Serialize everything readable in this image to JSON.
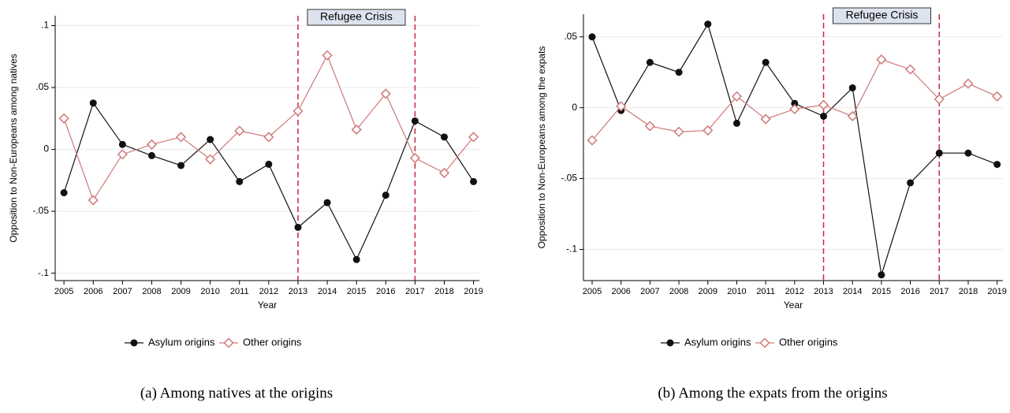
{
  "chart_data": [
    {
      "type": "line",
      "caption": "(a) Among natives at the origins",
      "x_label": "Year",
      "y_label": "Opposition to Non-Europeans among natives",
      "x": [
        2005,
        2006,
        2007,
        2008,
        2009,
        2010,
        2011,
        2012,
        2013,
        2014,
        2015,
        2016,
        2017,
        2018,
        2019
      ],
      "xlim": [
        2004.7,
        2019.2
      ],
      "xticks": [
        2005,
        2006,
        2007,
        2008,
        2009,
        2010,
        2011,
        2012,
        2013,
        2014,
        2015,
        2016,
        2017,
        2018,
        2019
      ],
      "ylim": [
        -0.106,
        0.108
      ],
      "yticks": [
        {
          "value": -0.1,
          "label": "-.1"
        },
        {
          "value": -0.05,
          "label": "-.05"
        },
        0,
        {
          "value": 0.05,
          "label": ".05"
        },
        {
          "value": 0.1,
          "label": ".1"
        }
      ],
      "grid": true,
      "vlines": [
        2013,
        2017
      ],
      "vline_color": "#c8283c",
      "annotation": "Refugee Crisis",
      "series": [
        {
          "name": "Asylum origins",
          "color": "#111111",
          "marker": "circle",
          "values": [
            -0.035,
            0.0375,
            0.004,
            -0.005,
            -0.013,
            0.008,
            -0.026,
            -0.012,
            -0.063,
            -0.043,
            -0.089,
            -0.037,
            0.023,
            0.01,
            -0.026
          ]
        },
        {
          "name": "Other origins",
          "color": "#d07878",
          "marker": "diamond",
          "values": [
            0.025,
            -0.041,
            -0.004,
            0.004,
            0.01,
            -0.008,
            0.015,
            0.01,
            0.031,
            0.076,
            0.016,
            0.045,
            -0.007,
            -0.019,
            0.01
          ]
        }
      ]
    },
    {
      "type": "line",
      "caption": "(b) Among the expats from the origins",
      "x_label": "Year",
      "y_label": "Opposition to Non-Europeans among the expats",
      "x": [
        2005,
        2006,
        2007,
        2008,
        2009,
        2010,
        2011,
        2012,
        2013,
        2014,
        2015,
        2016,
        2017,
        2018,
        2019
      ],
      "xlim": [
        2004.7,
        2019.2
      ],
      "xticks": [
        2005,
        2006,
        2007,
        2008,
        2009,
        2010,
        2011,
        2012,
        2013,
        2014,
        2015,
        2016,
        2017,
        2018,
        2019
      ],
      "ylim": [
        -0.122,
        0.066
      ],
      "yticks": [
        {
          "value": -0.1,
          "label": "-.1"
        },
        {
          "value": -0.05,
          "label": "-.05"
        },
        0,
        {
          "value": 0.05,
          "label": ".05"
        }
      ],
      "grid": true,
      "vlines": [
        2013,
        2017
      ],
      "vline_color": "#c8283c",
      "annotation": "Refugee Crisis",
      "series": [
        {
          "name": "Asylum origins",
          "color": "#111111",
          "marker": "circle",
          "values": [
            0.05,
            -0.002,
            0.032,
            0.025,
            0.059,
            -0.011,
            0.032,
            0.003,
            -0.006,
            0.014,
            -0.118,
            -0.053,
            -0.032,
            -0.032,
            -0.04
          ]
        },
        {
          "name": "Other origins",
          "color": "#d07878",
          "marker": "diamond",
          "values": [
            -0.023,
            0.001,
            -0.013,
            -0.017,
            -0.016,
            0.008,
            -0.008,
            -0.001,
            0.002,
            -0.006,
            0.034,
            0.027,
            0.006,
            0.017,
            0.008
          ]
        }
      ]
    }
  ]
}
